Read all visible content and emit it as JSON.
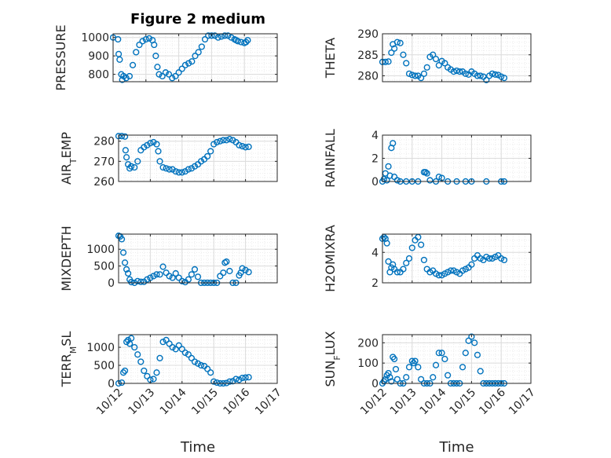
{
  "figure": {
    "title": "Figure 2 medium"
  },
  "colors": {
    "marker": "#0072bd",
    "axis": "#262626",
    "grid": "#dcdcdc",
    "minorgrid": "#ececec"
  },
  "chart_data": [
    {
      "type": "scatter",
      "ylabel": "PRESSURE",
      "xlabel": "",
      "ylim": [
        760,
        1020
      ],
      "yticks": [
        800,
        900,
        1000
      ],
      "ytick_labels": [
        "800",
        "900",
        "1000"
      ],
      "xlim": [
        0,
        5
      ],
      "xticks": [
        0,
        1,
        2,
        3,
        4,
        5
      ],
      "xtick_labels": [],
      "grid": true,
      "series": [
        {
          "x": [
            0.0,
            0.15,
            0.17,
            0.2,
            0.25,
            0.28,
            0.32,
            0.4,
            0.5,
            0.6,
            0.7,
            0.8,
            0.9,
            1.0,
            1.1,
            1.2,
            1.25,
            1.3,
            1.35,
            1.4,
            1.5,
            1.6,
            1.7,
            1.8,
            1.9,
            2.0,
            2.1,
            2.2,
            2.3,
            2.4,
            2.5,
            2.6,
            2.7,
            2.8,
            2.9,
            3.0,
            3.1,
            3.2,
            3.3,
            3.4,
            3.5,
            3.6,
            3.7,
            3.75,
            3.8,
            3.9,
            4.0,
            4.05,
            4.1
          ],
          "y": [
            1000,
            990,
            910,
            880,
            800,
            770,
            790,
            780,
            790,
            850,
            920,
            960,
            980,
            990,
            995,
            985,
            960,
            900,
            840,
            800,
            790,
            810,
            800,
            780,
            790,
            810,
            830,
            850,
            860,
            870,
            900,
            920,
            950,
            990,
            1010,
            1010,
            1010,
            1000,
            1005,
            1010,
            1010,
            1000,
            990,
            985,
            980,
            975,
            970,
            975,
            985
          ]
        }
      ]
    },
    {
      "type": "scatter",
      "ylabel": "THETA",
      "xlabel": "",
      "ylim": [
        278.6,
        290
      ],
      "yticks": [
        280,
        285,
        290
      ],
      "ytick_labels": [
        "280",
        "285",
        "290"
      ],
      "xlim": [
        0,
        5
      ],
      "xticks": [
        0,
        1,
        2,
        3,
        4,
        5
      ],
      "xtick_labels": [],
      "grid": true,
      "series": [
        {
          "x": [
            0.0,
            0.1,
            0.2,
            0.3,
            0.35,
            0.4,
            0.5,
            0.6,
            0.7,
            0.8,
            0.9,
            1.0,
            1.1,
            1.2,
            1.3,
            1.4,
            1.5,
            1.6,
            1.7,
            1.8,
            1.9,
            2.0,
            2.1,
            2.2,
            2.3,
            2.4,
            2.5,
            2.6,
            2.7,
            2.8,
            2.9,
            3.0,
            3.1,
            3.2,
            3.3,
            3.4,
            3.5,
            3.6,
            3.7,
            3.8,
            3.9,
            4.0,
            4.1
          ],
          "y": [
            283.3,
            283.3,
            283.4,
            285.5,
            287.5,
            286.5,
            288,
            287.8,
            285,
            283,
            280.5,
            280.2,
            280,
            280,
            279.5,
            280.5,
            282,
            284.5,
            285,
            284,
            282.5,
            283.5,
            283,
            282,
            281.5,
            281,
            281.2,
            281,
            281,
            280.5,
            280.3,
            281,
            280.5,
            280,
            280,
            279.8,
            279,
            280,
            280.5,
            280.3,
            280.2,
            279.8,
            279.5
          ]
        }
      ]
    },
    {
      "type": "scatter",
      "ylabel": "AIR_TEMP",
      "xlabel": "",
      "ylim": [
        260,
        283
      ],
      "yticks": [
        260,
        270,
        280
      ],
      "ytick_labels": [
        "260",
        "270",
        "280"
      ],
      "xlim": [
        0,
        5
      ],
      "xticks": [
        0,
        1,
        2,
        3,
        4,
        5
      ],
      "xtick_labels": [],
      "grid": true,
      "series": [
        {
          "x": [
            0.0,
            0.1,
            0.2,
            0.22,
            0.25,
            0.3,
            0.35,
            0.4,
            0.5,
            0.6,
            0.7,
            0.8,
            0.9,
            1.0,
            1.1,
            1.2,
            1.25,
            1.3,
            1.4,
            1.5,
            1.6,
            1.7,
            1.8,
            1.9,
            2.0,
            2.1,
            2.2,
            2.3,
            2.4,
            2.5,
            2.6,
            2.7,
            2.8,
            2.9,
            3.0,
            3.1,
            3.2,
            3.3,
            3.4,
            3.5,
            3.6,
            3.7,
            3.8,
            3.9,
            4.0,
            4.1
          ],
          "y": [
            282.5,
            282.5,
            282.3,
            275.5,
            272,
            268.5,
            266.5,
            267.5,
            267,
            270,
            275.5,
            277,
            278,
            279,
            279.5,
            278.5,
            275,
            270,
            267,
            266.5,
            266,
            266,
            265,
            264.5,
            264.5,
            265,
            266,
            266.5,
            267.5,
            268.5,
            270,
            271,
            272.5,
            275,
            278.5,
            279.5,
            280,
            280.5,
            280.5,
            281,
            280.5,
            279.5,
            278,
            277.5,
            277,
            277.2
          ]
        }
      ]
    },
    {
      "type": "scatter",
      "ylabel": "RAINFALL",
      "xlabel": "",
      "ylim": [
        0,
        4
      ],
      "yticks": [
        0,
        2,
        4
      ],
      "ytick_labels": [
        "0",
        "2",
        "4"
      ],
      "xlim": [
        0,
        5
      ],
      "xticks": [
        0,
        1,
        2,
        3,
        4,
        5
      ],
      "xtick_labels": [],
      "grid": true,
      "series": [
        {
          "x": [
            0.0,
            0.05,
            0.1,
            0.15,
            0.2,
            0.25,
            0.3,
            0.35,
            0.4,
            0.5,
            0.6,
            0.8,
            1.0,
            1.2,
            1.4,
            1.45,
            1.5,
            1.6,
            1.8,
            1.9,
            2.0,
            2.2,
            2.5,
            2.8,
            3.0,
            3.5,
            4.0,
            4.1
          ],
          "y": [
            0,
            0.2,
            0.7,
            0.1,
            1.3,
            0.5,
            2.9,
            3.3,
            0.4,
            0.1,
            0,
            0,
            0,
            0,
            0.8,
            0.8,
            0.7,
            0.1,
            0,
            0.4,
            0.3,
            0,
            0,
            0,
            0,
            0,
            0,
            0
          ]
        }
      ]
    },
    {
      "type": "scatter",
      "ylabel": "MIXDEPTH",
      "xlabel": "",
      "ylim": [
        0,
        1450
      ],
      "yticks": [
        0,
        500,
        1000
      ],
      "ytick_labels": [
        "0",
        "500",
        "1000"
      ],
      "xlim": [
        0,
        5
      ],
      "xticks": [
        0,
        1,
        2,
        3,
        4,
        5
      ],
      "xtick_labels": [],
      "grid": true,
      "series": [
        {
          "x": [
            0.0,
            0.05,
            0.1,
            0.15,
            0.2,
            0.25,
            0.3,
            0.35,
            0.4,
            0.5,
            0.6,
            0.7,
            0.8,
            0.9,
            1.0,
            1.1,
            1.2,
            1.3,
            1.4,
            1.5,
            1.6,
            1.7,
            1.8,
            1.9,
            2.0,
            2.1,
            2.2,
            2.3,
            2.4,
            2.5,
            2.6,
            2.7,
            2.8,
            2.9,
            3.0,
            3.1,
            3.2,
            3.3,
            3.35,
            3.4,
            3.5,
            3.6,
            3.7,
            3.8,
            3.85,
            3.9,
            4.0,
            4.1
          ],
          "y": [
            1400,
            1380,
            1300,
            900,
            600,
            400,
            280,
            100,
            20,
            0,
            50,
            30,
            30,
            100,
            150,
            200,
            250,
            250,
            480,
            300,
            200,
            150,
            280,
            150,
            50,
            20,
            100,
            250,
            400,
            180,
            0,
            0,
            0,
            0,
            0,
            0,
            200,
            300,
            600,
            630,
            350,
            0,
            0,
            220,
            300,
            430,
            380,
            320
          ]
        }
      ]
    },
    {
      "type": "scatter",
      "ylabel": "H2OMIXRA",
      "xlabel": "",
      "ylim": [
        2,
        5.2
      ],
      "yticks": [
        2,
        4
      ],
      "ytick_labels": [
        "2",
        "4"
      ],
      "xlim": [
        0,
        5
      ],
      "xticks": [
        0,
        1,
        2,
        3,
        4,
        5
      ],
      "xtick_labels": [],
      "grid": true,
      "series": [
        {
          "x": [
            0.0,
            0.05,
            0.1,
            0.15,
            0.2,
            0.25,
            0.3,
            0.35,
            0.4,
            0.5,
            0.6,
            0.7,
            0.8,
            0.9,
            1.0,
            1.1,
            1.2,
            1.3,
            1.4,
            1.5,
            1.6,
            1.7,
            1.8,
            1.9,
            2.0,
            2.1,
            2.2,
            2.3,
            2.4,
            2.5,
            2.6,
            2.7,
            2.8,
            2.9,
            3.0,
            3.1,
            3.2,
            3.3,
            3.4,
            3.5,
            3.6,
            3.7,
            3.8,
            3.9,
            4.0,
            4.1
          ],
          "y": [
            4.9,
            5.0,
            4.9,
            4.6,
            3.4,
            2.7,
            3.0,
            3.2,
            2.9,
            2.7,
            2.7,
            2.9,
            3.3,
            3.6,
            4.3,
            4.8,
            5.0,
            4.5,
            3.5,
            2.9,
            2.7,
            2.8,
            2.6,
            2.5,
            2.5,
            2.6,
            2.7,
            2.8,
            2.8,
            2.7,
            2.6,
            2.8,
            2.9,
            3.0,
            3.2,
            3.6,
            3.8,
            3.6,
            3.5,
            3.7,
            3.6,
            3.6,
            3.7,
            3.8,
            3.6,
            3.5
          ]
        }
      ]
    },
    {
      "type": "scatter",
      "ylabel": "TERR_MSL",
      "xlabel": "Time",
      "ylim": [
        0,
        1350
      ],
      "yticks": [
        0,
        500,
        1000
      ],
      "ytick_labels": [
        "0",
        "500",
        "1000"
      ],
      "xlim": [
        0,
        5
      ],
      "xticks": [
        0,
        1,
        2,
        3,
        4,
        5
      ],
      "xtick_labels": [
        "10/12",
        "10/13",
        "10/14",
        "10/15",
        "10/16",
        "10/17"
      ],
      "grid": true,
      "series": [
        {
          "x": [
            0.0,
            0.1,
            0.15,
            0.2,
            0.25,
            0.3,
            0.35,
            0.4,
            0.5,
            0.6,
            0.7,
            0.8,
            0.9,
            1.0,
            1.1,
            1.2,
            1.3,
            1.4,
            1.5,
            1.6,
            1.7,
            1.8,
            1.9,
            2.0,
            2.1,
            2.2,
            2.3,
            2.4,
            2.5,
            2.6,
            2.7,
            2.8,
            2.9,
            3.0,
            3.1,
            3.2,
            3.3,
            3.4,
            3.5,
            3.6,
            3.7,
            3.8,
            3.9,
            4.0,
            4.1
          ],
          "y": [
            0,
            20,
            300,
            350,
            1150,
            1200,
            1100,
            1250,
            1000,
            800,
            600,
            350,
            200,
            100,
            120,
            300,
            700,
            1150,
            1200,
            1100,
            1000,
            950,
            1050,
            950,
            850,
            800,
            700,
            600,
            550,
            500,
            480,
            400,
            300,
            50,
            20,
            0,
            0,
            10,
            50,
            60,
            120,
            100,
            150,
            160,
            170
          ]
        }
      ]
    },
    {
      "type": "scatter",
      "ylabel": "SUN_FLUX",
      "xlabel": "Time",
      "ylim": [
        0,
        240
      ],
      "yticks": [
        0,
        100,
        200
      ],
      "ytick_labels": [
        "0",
        "100",
        "200"
      ],
      "xlim": [
        0,
        5
      ],
      "xticks": [
        0,
        1,
        2,
        3,
        4,
        5
      ],
      "xtick_labels": [
        "10/12",
        "10/13",
        "10/14",
        "10/15",
        "10/16",
        "10/17"
      ],
      "grid": true,
      "series": [
        {
          "x": [
            0.0,
            0.05,
            0.1,
            0.15,
            0.2,
            0.25,
            0.3,
            0.35,
            0.4,
            0.45,
            0.5,
            0.6,
            0.7,
            0.8,
            0.9,
            1.0,
            1.05,
            1.1,
            1.2,
            1.3,
            1.4,
            1.5,
            1.6,
            1.7,
            1.8,
            1.9,
            2.0,
            2.1,
            2.2,
            2.3,
            2.4,
            2.5,
            2.6,
            2.7,
            2.8,
            2.9,
            3.0,
            3.1,
            3.2,
            3.3,
            3.4,
            3.5,
            3.6,
            3.7,
            3.8,
            3.9,
            4.0,
            4.1
          ],
          "y": [
            0,
            10,
            20,
            40,
            50,
            30,
            10,
            130,
            120,
            70,
            20,
            0,
            0,
            30,
            80,
            110,
            100,
            110,
            80,
            20,
            0,
            0,
            0,
            30,
            90,
            150,
            150,
            120,
            40,
            0,
            0,
            0,
            0,
            80,
            150,
            210,
            230,
            200,
            140,
            60,
            0,
            0,
            0,
            0,
            0,
            0,
            0,
            0
          ]
        }
      ]
    }
  ]
}
